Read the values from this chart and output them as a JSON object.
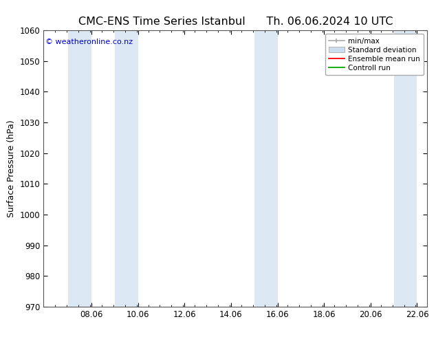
{
  "title_left": "CMC-ENS Time Series Istanbul",
  "title_right": "Th. 06.06.2024 10 UTC",
  "ylabel": "Surface Pressure (hPa)",
  "ylim": [
    970,
    1060
  ],
  "yticks": [
    970,
    980,
    990,
    1000,
    1010,
    1020,
    1030,
    1040,
    1050,
    1060
  ],
  "xlim_start": 6.08,
  "xlim_end": 22.42,
  "xticks": [
    8.06,
    10.06,
    12.06,
    14.06,
    16.06,
    18.06,
    20.06,
    22.06
  ],
  "xticklabels": [
    "08.06",
    "10.06",
    "12.06",
    "14.06",
    "16.06",
    "18.06",
    "20.06",
    "22.06"
  ],
  "shaded_regions": [
    {
      "xmin": 7.06,
      "xmax": 8.06,
      "color": "#dce9f5"
    },
    {
      "xmin": 9.06,
      "xmax": 10.06,
      "color": "#dce9f5"
    },
    {
      "xmin": 15.06,
      "xmax": 16.06,
      "color": "#dce9f5"
    },
    {
      "xmin": 21.06,
      "xmax": 22.06,
      "color": "#dce9f5"
    }
  ],
  "watermark": "© weatheronline.co.nz",
  "watermark_color": "#0000cc",
  "background_color": "#ffffff",
  "legend_items": [
    {
      "label": "min/max",
      "color": "#aaaaaa",
      "style": "errbar"
    },
    {
      "label": "Standard deviation",
      "color": "#ccddf0",
      "style": "rect"
    },
    {
      "label": "Ensemble mean run",
      "color": "#ff0000",
      "style": "line"
    },
    {
      "label": "Controll run",
      "color": "#00aa00",
      "style": "line"
    }
  ],
  "title_fontsize": 11.5,
  "axis_label_fontsize": 9,
  "tick_fontsize": 8.5,
  "legend_fontsize": 7.5,
  "watermark_fontsize": 8
}
